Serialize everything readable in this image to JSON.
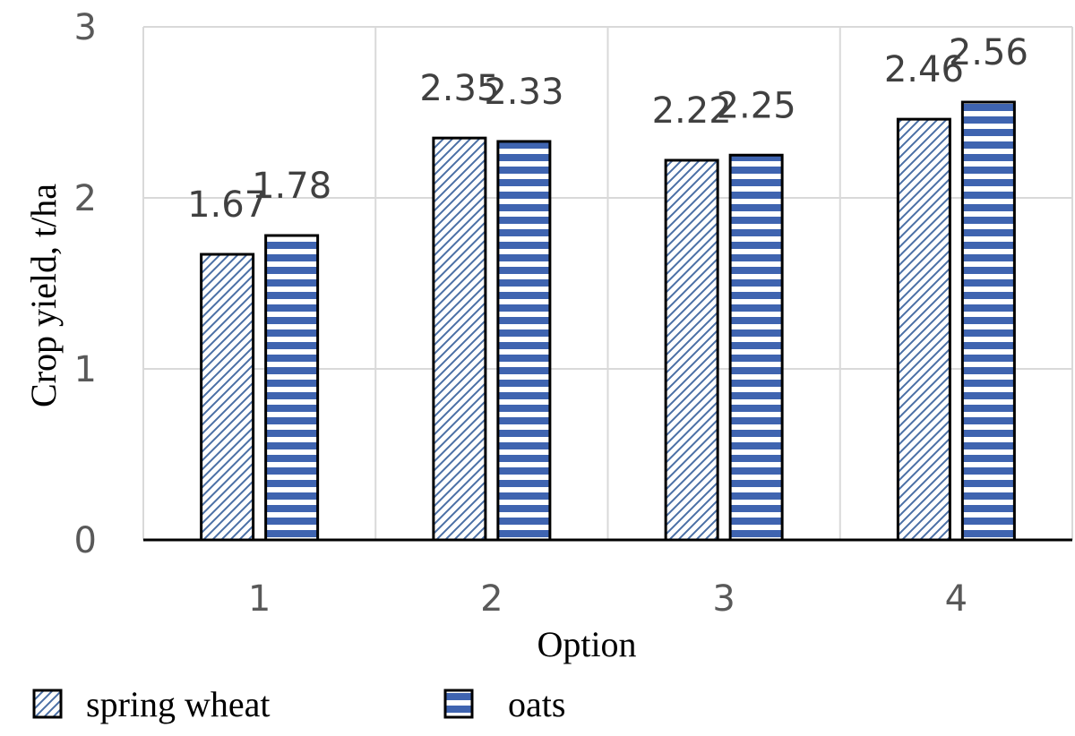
{
  "chart_data": {
    "type": "bar",
    "title": "",
    "xlabel": "Option",
    "ylabel": "Crop yield, t/ha",
    "categories": [
      "1",
      "2",
      "3",
      "4"
    ],
    "series": [
      {
        "name": "spring wheat",
        "values": [
          1.67,
          2.35,
          2.22,
          2.46
        ],
        "pattern": "diagonal-hatch",
        "color": "#4a6fa5"
      },
      {
        "name": "oats",
        "values": [
          1.78,
          2.33,
          2.25,
          2.56
        ],
        "pattern": "horizontal-stripes",
        "color": "#3f64b0"
      }
    ],
    "ylim": [
      0,
      3
    ],
    "yticks": [
      "0",
      "1",
      "2",
      "3"
    ],
    "grid": true,
    "legend": "bottom-left"
  }
}
